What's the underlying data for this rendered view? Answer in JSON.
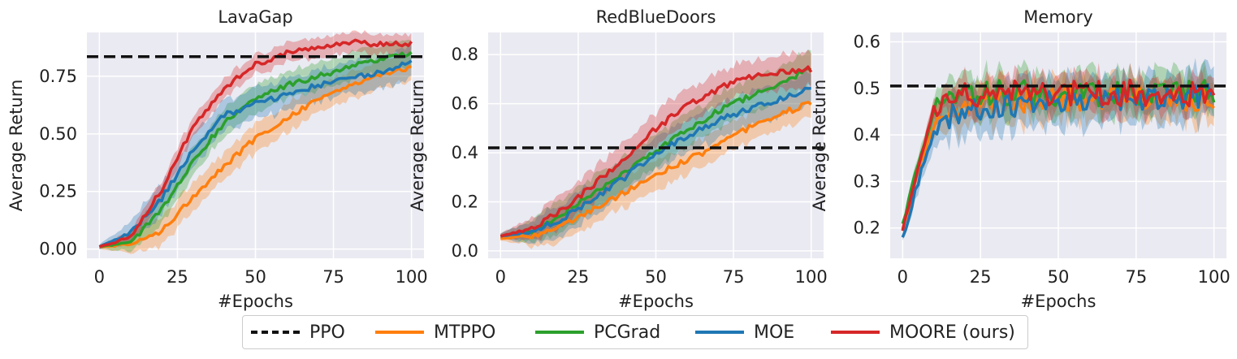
{
  "colors": {
    "PPO": "#111111",
    "MTPPO": "#ff7f0e",
    "PCGrad": "#2ca02c",
    "MOE": "#1f77b4",
    "MOORE": "#d62728",
    "panel_bg": "#eaeaf2"
  },
  "legend": {
    "items": [
      {
        "key": "PPO",
        "label": "PPO",
        "style": "dashed"
      },
      {
        "key": "MTPPO",
        "label": "MTPPO",
        "style": "solid"
      },
      {
        "key": "PCGrad",
        "label": "PCGrad",
        "style": "solid"
      },
      {
        "key": "MOE",
        "label": "MOE",
        "style": "solid"
      },
      {
        "key": "MOORE",
        "label": "MOORE (ours)",
        "style": "solid"
      }
    ]
  },
  "chart_data": [
    {
      "type": "line",
      "title": "LavaGap",
      "xlabel": "#Epochs",
      "ylabel": "Average Return",
      "xlim": [
        -4,
        104
      ],
      "ylim": [
        -0.04,
        0.94
      ],
      "xticks": [
        0,
        25,
        50,
        75,
        100
      ],
      "yticks": [
        0.0,
        0.25,
        0.5,
        0.75
      ],
      "ytick_labels": [
        "0.00",
        "0.25",
        "0.50",
        "0.75"
      ],
      "baseline": {
        "name": "PPO",
        "value": 0.835
      },
      "series": [
        {
          "name": "MTPPO",
          "points": [
            [
              0,
              0.01
            ],
            [
              10,
              0.02
            ],
            [
              20,
              0.08
            ],
            [
              30,
              0.23
            ],
            [
              40,
              0.36
            ],
            [
              50,
              0.48
            ],
            [
              60,
              0.57
            ],
            [
              70,
              0.65
            ],
            [
              80,
              0.71
            ],
            [
              90,
              0.76
            ],
            [
              100,
              0.79
            ]
          ],
          "band": 0.07
        },
        {
          "name": "PCGrad",
          "points": [
            [
              0,
              0.01
            ],
            [
              10,
              0.03
            ],
            [
              20,
              0.17
            ],
            [
              30,
              0.38
            ],
            [
              40,
              0.55
            ],
            [
              50,
              0.65
            ],
            [
              60,
              0.71
            ],
            [
              70,
              0.75
            ],
            [
              80,
              0.79
            ],
            [
              90,
              0.82
            ],
            [
              100,
              0.85
            ]
          ],
          "band": 0.07
        },
        {
          "name": "MOE",
          "points": [
            [
              0,
              0.01
            ],
            [
              10,
              0.07
            ],
            [
              20,
              0.22
            ],
            [
              30,
              0.43
            ],
            [
              40,
              0.58
            ],
            [
              50,
              0.63
            ],
            [
              60,
              0.67
            ],
            [
              70,
              0.71
            ],
            [
              80,
              0.74
            ],
            [
              90,
              0.77
            ],
            [
              100,
              0.81
            ]
          ],
          "band": 0.08
        },
        {
          "name": "MOORE",
          "points": [
            [
              0,
              0.01
            ],
            [
              10,
              0.05
            ],
            [
              20,
              0.26
            ],
            [
              30,
              0.53
            ],
            [
              40,
              0.7
            ],
            [
              50,
              0.8
            ],
            [
              60,
              0.85
            ],
            [
              70,
              0.88
            ],
            [
              80,
              0.9
            ],
            [
              90,
              0.89
            ],
            [
              100,
              0.89
            ]
          ],
          "band": 0.05
        }
      ]
    },
    {
      "type": "line",
      "title": "RedBlueDoors",
      "xlabel": "#Epochs",
      "ylabel": "Average Return",
      "xlim": [
        -4,
        104
      ],
      "ylim": [
        -0.03,
        0.89
      ],
      "xticks": [
        0,
        25,
        50,
        75,
        100
      ],
      "yticks": [
        0.0,
        0.2,
        0.4,
        0.6,
        0.8
      ],
      "ytick_labels": [
        "0.0",
        "0.2",
        "0.4",
        "0.6",
        "0.8"
      ],
      "baseline": {
        "name": "PPO",
        "value": 0.42
      },
      "series": [
        {
          "name": "MTPPO",
          "points": [
            [
              0,
              0.05
            ],
            [
              10,
              0.06
            ],
            [
              20,
              0.1
            ],
            [
              30,
              0.17
            ],
            [
              40,
              0.24
            ],
            [
              50,
              0.31
            ],
            [
              60,
              0.37
            ],
            [
              70,
              0.43
            ],
            [
              80,
              0.5
            ],
            [
              90,
              0.56
            ],
            [
              100,
              0.6
            ]
          ],
          "band": 0.07
        },
        {
          "name": "PCGrad",
          "points": [
            [
              0,
              0.06
            ],
            [
              10,
              0.08
            ],
            [
              20,
              0.15
            ],
            [
              30,
              0.24
            ],
            [
              40,
              0.32
            ],
            [
              50,
              0.41
            ],
            [
              60,
              0.49
            ],
            [
              70,
              0.57
            ],
            [
              80,
              0.63
            ],
            [
              90,
              0.68
            ],
            [
              100,
              0.75
            ]
          ],
          "band": 0.08
        },
        {
          "name": "MOE",
          "points": [
            [
              0,
              0.06
            ],
            [
              10,
              0.08
            ],
            [
              20,
              0.13
            ],
            [
              30,
              0.21
            ],
            [
              40,
              0.3
            ],
            [
              50,
              0.4
            ],
            [
              60,
              0.47
            ],
            [
              70,
              0.53
            ],
            [
              80,
              0.58
            ],
            [
              90,
              0.62
            ],
            [
              100,
              0.66
            ]
          ],
          "band": 0.08
        },
        {
          "name": "MOORE",
          "points": [
            [
              0,
              0.06
            ],
            [
              10,
              0.09
            ],
            [
              20,
              0.17
            ],
            [
              30,
              0.27
            ],
            [
              40,
              0.38
            ],
            [
              50,
              0.5
            ],
            [
              60,
              0.59
            ],
            [
              70,
              0.66
            ],
            [
              80,
              0.71
            ],
            [
              90,
              0.73
            ],
            [
              100,
              0.74
            ]
          ],
          "band": 0.08
        }
      ]
    },
    {
      "type": "line",
      "title": "Memory",
      "xlabel": "#Epochs",
      "ylabel": "Average Return",
      "xlim": [
        -4,
        104
      ],
      "ylim": [
        0.135,
        0.62
      ],
      "xticks": [
        0,
        25,
        50,
        75,
        100
      ],
      "yticks": [
        0.2,
        0.3,
        0.4,
        0.5,
        0.6
      ],
      "ytick_labels": [
        "0.2",
        "0.3",
        "0.4",
        "0.5",
        "0.6"
      ],
      "baseline": {
        "name": "PPO",
        "value": 0.505
      },
      "series": [
        {
          "name": "MTPPO",
          "points": [
            [
              0,
              0.19
            ],
            [
              5,
              0.32
            ],
            [
              10,
              0.42
            ],
            [
              15,
              0.46
            ],
            [
              25,
              0.47
            ],
            [
              50,
              0.48
            ],
            [
              75,
              0.48
            ],
            [
              100,
              0.48
            ]
          ],
          "band": 0.05
        },
        {
          "name": "PCGrad",
          "points": [
            [
              0,
              0.21
            ],
            [
              5,
              0.34
            ],
            [
              10,
              0.45
            ],
            [
              15,
              0.48
            ],
            [
              25,
              0.49
            ],
            [
              50,
              0.49
            ],
            [
              75,
              0.49
            ],
            [
              100,
              0.49
            ]
          ],
          "band": 0.05
        },
        {
          "name": "MOE",
          "points": [
            [
              0,
              0.18
            ],
            [
              5,
              0.3
            ],
            [
              10,
              0.4
            ],
            [
              15,
              0.44
            ],
            [
              25,
              0.46
            ],
            [
              50,
              0.47
            ],
            [
              75,
              0.48
            ],
            [
              100,
              0.48
            ]
          ],
          "band": 0.06
        },
        {
          "name": "MOORE",
          "points": [
            [
              0,
              0.19
            ],
            [
              5,
              0.33
            ],
            [
              10,
              0.46
            ],
            [
              15,
              0.48
            ],
            [
              25,
              0.49
            ],
            [
              50,
              0.49
            ],
            [
              75,
              0.49
            ],
            [
              100,
              0.49
            ]
          ],
          "band": 0.04
        }
      ]
    }
  ]
}
